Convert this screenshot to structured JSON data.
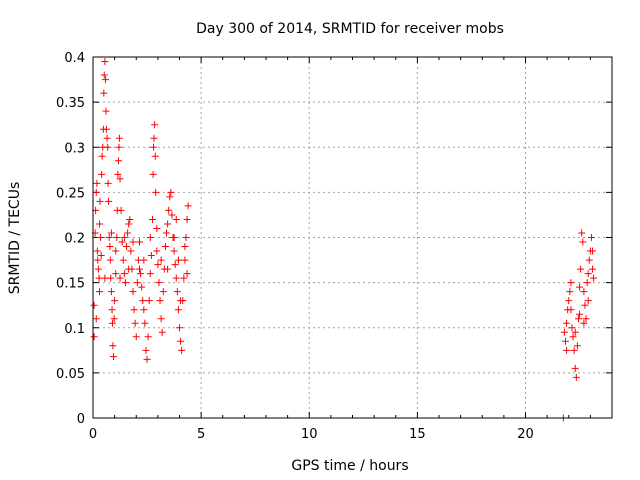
{
  "chart_data": {
    "type": "scatter",
    "title": "Day 300 of 2014, SRMTID for receiver mobs",
    "xlabel": "GPS time / hours",
    "ylabel": "SRMTID / TECUs",
    "xlim": [
      0,
      24.0
    ],
    "ylim": [
      0,
      0.4
    ],
    "xticks": [
      0,
      5,
      10,
      15,
      20
    ],
    "yticks": [
      0,
      0.05,
      0.1,
      0.15,
      0.2,
      0.25,
      0.3,
      0.35,
      0.4
    ],
    "xtick_labels": [
      "0",
      "5",
      "10",
      "15",
      "20"
    ],
    "ytick_labels": [
      "0",
      "0.05",
      "0.1",
      "0.15",
      "0.2",
      "0.25",
      "0.3",
      "0.35",
      "0.4"
    ],
    "grid": true,
    "marker": "+",
    "marker_color": "#ff0000",
    "series": [
      {
        "name": "SRMTID",
        "points": [
          [
            0.05,
            0.09
          ],
          [
            0.05,
            0.125
          ],
          [
            0.1,
            0.205
          ],
          [
            0.12,
            0.23
          ],
          [
            0.15,
            0.25
          ],
          [
            0.18,
            0.26
          ],
          [
            0.2,
            0.185
          ],
          [
            0.22,
            0.175
          ],
          [
            0.25,
            0.165
          ],
          [
            0.28,
            0.155
          ],
          [
            0.3,
            0.215
          ],
          [
            0.32,
            0.24
          ],
          [
            0.35,
            0.2
          ],
          [
            0.38,
            0.18
          ],
          [
            0.4,
            0.27
          ],
          [
            0.42,
            0.29
          ],
          [
            0.45,
            0.3
          ],
          [
            0.48,
            0.32
          ],
          [
            0.5,
            0.36
          ],
          [
            0.52,
            0.38
          ],
          [
            0.55,
            0.395
          ],
          [
            0.58,
            0.375
          ],
          [
            0.6,
            0.34
          ],
          [
            0.62,
            0.32
          ],
          [
            0.65,
            0.31
          ],
          [
            0.68,
            0.3
          ],
          [
            0.7,
            0.26
          ],
          [
            0.72,
            0.24
          ],
          [
            0.75,
            0.2
          ],
          [
            0.78,
            0.19
          ],
          [
            0.8,
            0.175
          ],
          [
            0.82,
            0.155
          ],
          [
            0.85,
            0.14
          ],
          [
            0.88,
            0.12
          ],
          [
            0.9,
            0.105
          ],
          [
            0.92,
            0.08
          ],
          [
            0.95,
            0.068
          ],
          [
            0.98,
            0.11
          ],
          [
            1.0,
            0.13
          ],
          [
            1.05,
            0.16
          ],
          [
            1.1,
            0.2
          ],
          [
            1.12,
            0.23
          ],
          [
            1.15,
            0.27
          ],
          [
            1.18,
            0.285
          ],
          [
            1.2,
            0.3
          ],
          [
            1.22,
            0.31
          ],
          [
            1.25,
            0.265
          ],
          [
            1.3,
            0.23
          ],
          [
            1.35,
            0.195
          ],
          [
            1.4,
            0.175
          ],
          [
            1.45,
            0.16
          ],
          [
            1.5,
            0.15
          ],
          [
            1.55,
            0.19
          ],
          [
            1.6,
            0.205
          ],
          [
            1.65,
            0.215
          ],
          [
            1.7,
            0.22
          ],
          [
            1.75,
            0.185
          ],
          [
            1.8,
            0.165
          ],
          [
            1.85,
            0.14
          ],
          [
            1.9,
            0.12
          ],
          [
            1.95,
            0.105
          ],
          [
            2.0,
            0.09
          ],
          [
            2.05,
            0.15
          ],
          [
            2.1,
            0.175
          ],
          [
            2.15,
            0.195
          ],
          [
            2.2,
            0.16
          ],
          [
            2.25,
            0.145
          ],
          [
            2.3,
            0.13
          ],
          [
            2.35,
            0.12
          ],
          [
            2.4,
            0.105
          ],
          [
            2.45,
            0.075
          ],
          [
            2.5,
            0.065
          ],
          [
            2.55,
            0.09
          ],
          [
            2.6,
            0.13
          ],
          [
            2.65,
            0.16
          ],
          [
            2.7,
            0.18
          ],
          [
            2.75,
            0.22
          ],
          [
            2.78,
            0.27
          ],
          [
            2.8,
            0.3
          ],
          [
            2.82,
            0.31
          ],
          [
            2.85,
            0.325
          ],
          [
            2.88,
            0.29
          ],
          [
            2.9,
            0.25
          ],
          [
            2.95,
            0.21
          ],
          [
            3.0,
            0.17
          ],
          [
            3.05,
            0.15
          ],
          [
            3.1,
            0.13
          ],
          [
            3.15,
            0.11
          ],
          [
            3.2,
            0.095
          ],
          [
            3.25,
            0.14
          ],
          [
            3.3,
            0.165
          ],
          [
            3.35,
            0.19
          ],
          [
            3.4,
            0.205
          ],
          [
            3.45,
            0.215
          ],
          [
            3.5,
            0.23
          ],
          [
            3.55,
            0.245
          ],
          [
            3.6,
            0.25
          ],
          [
            3.65,
            0.225
          ],
          [
            3.7,
            0.2
          ],
          [
            3.75,
            0.185
          ],
          [
            3.8,
            0.17
          ],
          [
            3.85,
            0.155
          ],
          [
            3.9,
            0.14
          ],
          [
            3.95,
            0.12
          ],
          [
            4.0,
            0.1
          ],
          [
            4.05,
            0.085
          ],
          [
            4.1,
            0.075
          ],
          [
            4.15,
            0.13
          ],
          [
            4.2,
            0.155
          ],
          [
            4.25,
            0.175
          ],
          [
            4.3,
            0.2
          ],
          [
            4.35,
            0.22
          ],
          [
            4.4,
            0.235
          ],
          [
            0.15,
            0.11
          ],
          [
            0.3,
            0.14
          ],
          [
            0.55,
            0.155
          ],
          [
            0.85,
            0.205
          ],
          [
            1.05,
            0.185
          ],
          [
            1.25,
            0.155
          ],
          [
            1.45,
            0.2
          ],
          [
            1.65,
            0.165
          ],
          [
            1.85,
            0.195
          ],
          [
            2.15,
            0.165
          ],
          [
            2.35,
            0.175
          ],
          [
            2.65,
            0.2
          ],
          [
            2.95,
            0.185
          ],
          [
            3.15,
            0.175
          ],
          [
            3.45,
            0.165
          ],
          [
            3.75,
            0.2
          ],
          [
            3.95,
            0.175
          ],
          [
            4.25,
            0.19
          ],
          [
            4.35,
            0.16
          ],
          [
            4.05,
            0.13
          ],
          [
            3.85,
            0.22
          ],
          [
            21.75,
            0.0
          ],
          [
            21.8,
            0.095
          ],
          [
            21.85,
            0.085
          ],
          [
            21.9,
            0.105
          ],
          [
            21.95,
            0.12
          ],
          [
            22.0,
            0.13
          ],
          [
            22.05,
            0.14
          ],
          [
            22.1,
            0.15
          ],
          [
            22.15,
            0.1
          ],
          [
            22.2,
            0.09
          ],
          [
            22.25,
            0.075
          ],
          [
            22.3,
            0.055
          ],
          [
            22.35,
            0.045
          ],
          [
            22.4,
            0.08
          ],
          [
            22.45,
            0.11
          ],
          [
            22.5,
            0.145
          ],
          [
            22.55,
            0.165
          ],
          [
            22.6,
            0.205
          ],
          [
            22.65,
            0.195
          ],
          [
            22.7,
            0.14
          ],
          [
            22.75,
            0.125
          ],
          [
            22.8,
            0.11
          ],
          [
            22.85,
            0.15
          ],
          [
            22.9,
            0.16
          ],
          [
            22.95,
            0.175
          ],
          [
            23.0,
            0.185
          ],
          [
            23.05,
            0.2
          ],
          [
            23.1,
            0.165
          ],
          [
            23.15,
            0.155
          ],
          [
            22.1,
            0.12
          ],
          [
            22.3,
            0.095
          ],
          [
            22.5,
            0.115
          ],
          [
            22.7,
            0.105
          ],
          [
            22.9,
            0.13
          ],
          [
            23.1,
            0.185
          ],
          [
            21.9,
            0.075
          ]
        ]
      }
    ]
  }
}
